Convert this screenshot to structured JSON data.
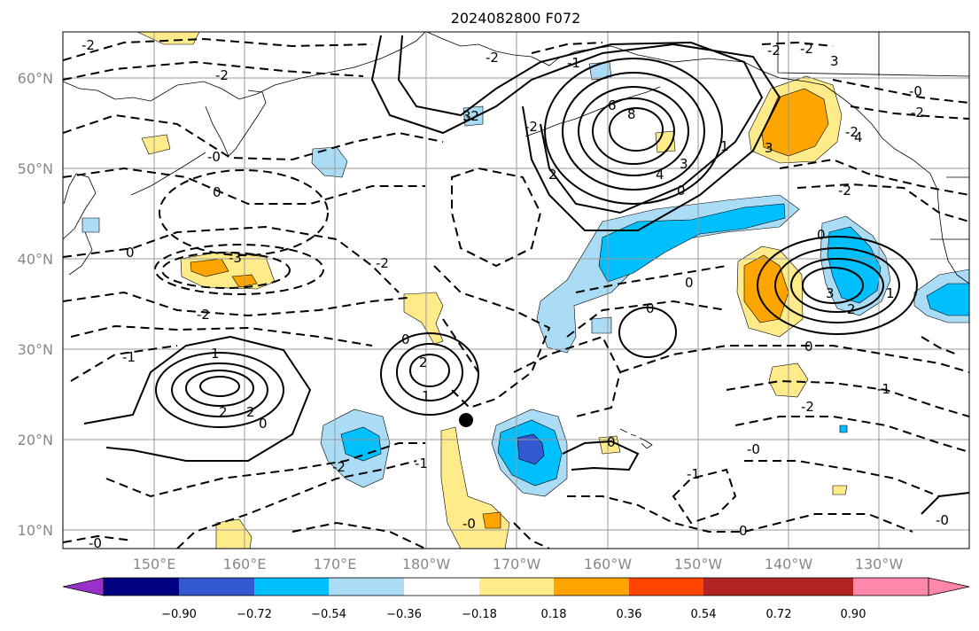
{
  "title": "2024082800 F072",
  "lat_labels": [
    "60°N",
    "50°N",
    "40°N",
    "30°N",
    "20°N",
    "10°N"
  ],
  "lon_labels": [
    "150°E",
    "160°E",
    "170°E",
    "180°W",
    "170°W",
    "160°W",
    "150°W",
    "140°W",
    "130°W"
  ],
  "colorbar": {
    "colors": [
      "#9932cc",
      "#000080",
      "#3358d0",
      "#00bfff",
      "#aadcf6",
      "#ffffff",
      "#ffeb8a",
      "#ffa500",
      "#ff4500",
      "#b22222",
      "#ff88aa"
    ],
    "tick_labels": [
      "−0.90",
      "−0.72",
      "−0.54",
      "−0.36",
      "−0.18",
      "0.18",
      "0.36",
      "0.54",
      "0.72",
      "0.90"
    ]
  },
  "contour_labels": [
    "-2",
    "-2",
    "-2",
    "-2",
    "-2",
    "-1",
    "-1",
    "-1",
    "0",
    "0",
    "0",
    "0",
    "0",
    "0",
    "0",
    "0",
    "0",
    "2",
    "2",
    "2",
    "2",
    "1",
    "1",
    "1",
    "1",
    "2",
    "6",
    "8",
    "4",
    "4",
    "3",
    "3",
    "3",
    "3",
    "3",
    "-3",
    "-2",
    "-2",
    "-2",
    "-2",
    "-2",
    "-1",
    "-0",
    "-0",
    "-0",
    "-0",
    "-0",
    "-2",
    "-2",
    "-2",
    "-2",
    "-1",
    "0",
    "-0",
    "0"
  ],
  "colors": {
    "contour": "#000000",
    "grid": "#9a9a9a",
    "coast": "#000000"
  }
}
